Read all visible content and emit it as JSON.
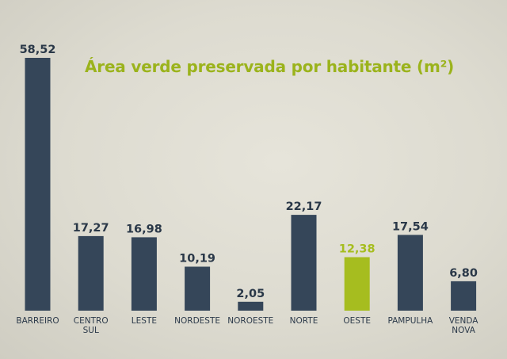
{
  "chart_data": {
    "type": "bar",
    "title": "Área verde preservada por habitante (m²)",
    "categories": [
      [
        "BARREIRO"
      ],
      [
        "CENTRO",
        "SUL"
      ],
      [
        "LESTE"
      ],
      [
        "NORDESTE"
      ],
      [
        "NOROESTE"
      ],
      [
        "NORTE"
      ],
      [
        "OESTE"
      ],
      [
        "PAMPULHA"
      ],
      [
        "VENDA",
        "NOVA"
      ]
    ],
    "values": [
      58.52,
      17.27,
      16.98,
      10.19,
      2.05,
      22.17,
      12.38,
      17.54,
      6.8
    ],
    "value_labels": [
      "58,52",
      "17,27",
      "16,98",
      "10,19",
      "2,05",
      "22,17",
      "12,38",
      "17,54",
      "6,80"
    ],
    "highlight_index": 6,
    "ylim": [
      0,
      58.52
    ],
    "grid": false,
    "legend": "none"
  },
  "colors": {
    "bar": "#354659",
    "highlight": "#a6bd1f",
    "value_text": "#2a3848",
    "highlight_text": "#a6bd1f"
  }
}
